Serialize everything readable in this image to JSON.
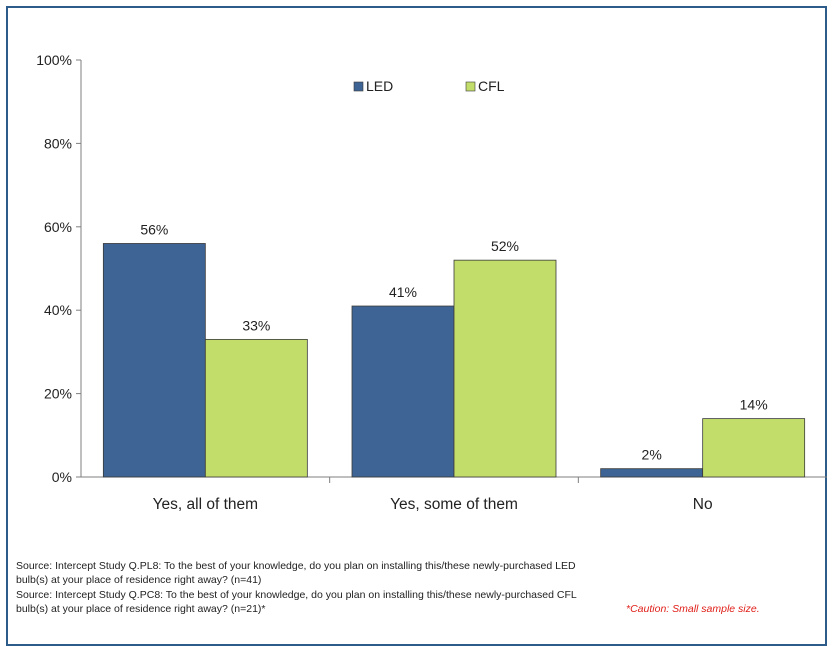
{
  "chart_data": {
    "type": "bar",
    "categories": [
      "Yes, all of them",
      "Yes, some of them",
      "No"
    ],
    "series": [
      {
        "name": "LED",
        "values": [
          56,
          41,
          2
        ],
        "color": "#3d6494",
        "labels": [
          "56%",
          "41%",
          "2%"
        ]
      },
      {
        "name": "CFL",
        "values": [
          33,
          52,
          14
        ],
        "color": "#c2dd69",
        "labels": [
          "33%",
          "52%",
          "14%"
        ]
      }
    ],
    "ylim": [
      0,
      100
    ],
    "yticks": [
      "0%",
      "20%",
      "40%",
      "60%",
      "80%",
      "100%"
    ],
    "ytick_values": [
      0,
      20,
      40,
      60,
      80,
      100
    ],
    "grid": false,
    "legend_position": "top-center"
  },
  "footnotes": {
    "line1": "Source: Intercept Study Q.PL8: To the best of your knowledge, do you plan on installing this/these newly-purchased LED",
    "line2": "bulb(s) at your place of residence right away? (n=41)",
    "line3": "Source: Intercept Study Q.PC8: To the best of your knowledge, do you plan on installing this/these newly-purchased CFL",
    "line4": "bulb(s) at your place of residence right away? (n=21)*",
    "caution": "*Caution: Small sample size."
  }
}
